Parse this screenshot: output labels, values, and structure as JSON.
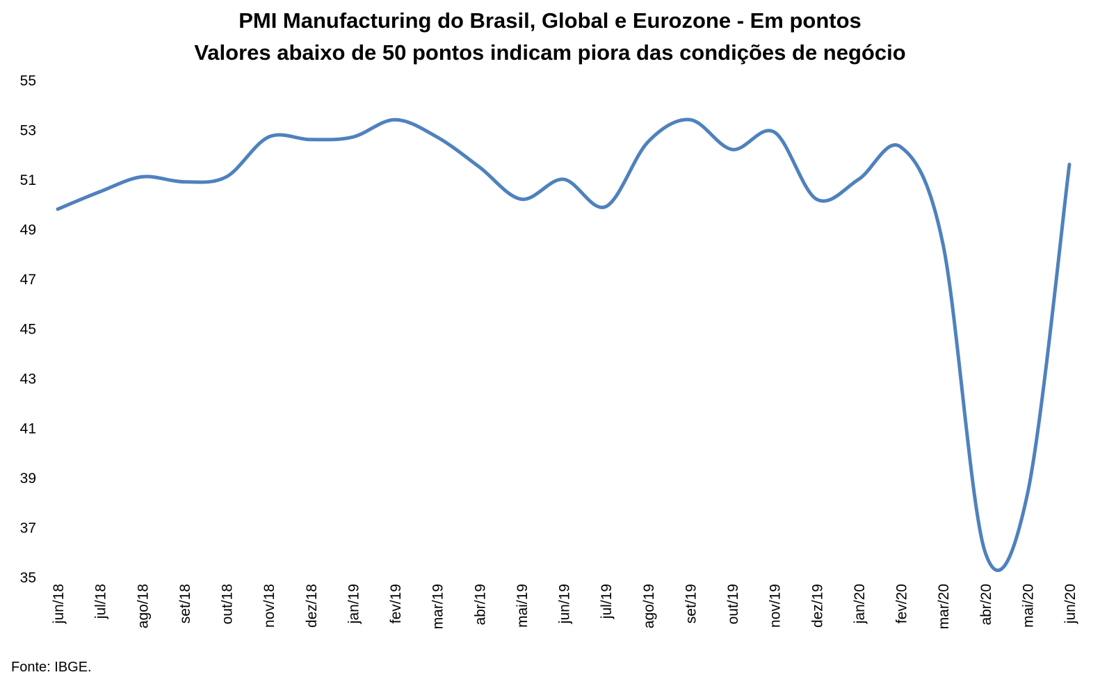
{
  "chart_data": {
    "type": "line",
    "title": "PMI Manufacturing do Brasil, Global e Eurozone - Em pontos",
    "subtitle": "Valores abaixo de 50 pontos indicam piora das condições de negócio",
    "xlabel": "",
    "ylabel": "",
    "ylim": [
      35,
      55
    ],
    "yticks": [
      35,
      37,
      39,
      41,
      43,
      45,
      47,
      49,
      51,
      53,
      55
    ],
    "grid": false,
    "legend": "none",
    "line_color": "#4F81BD",
    "categories": [
      "jun/18",
      "jul/18",
      "ago/18",
      "set/18",
      "out/18",
      "nov/18",
      "dez/18",
      "jan/19",
      "fev/19",
      "mar/19",
      "abr/19",
      "mai/19",
      "jun/19",
      "jul/19",
      "ago/19",
      "set/19",
      "out/19",
      "nov/19",
      "dez/19",
      "jan/20",
      "fev/20",
      "mar/20",
      "abr/20",
      "mai/20",
      "jun/20"
    ],
    "series": [
      {
        "values": [
          49.8,
          50.5,
          51.1,
          50.9,
          51.1,
          52.7,
          52.6,
          52.7,
          53.4,
          52.7,
          51.5,
          50.2,
          51.0,
          49.9,
          52.5,
          53.4,
          52.2,
          52.9,
          50.2,
          51.0,
          52.3,
          48.4,
          36.0,
          38.3,
          51.6
        ]
      }
    ]
  },
  "footer": {
    "source": "Fonte: IBGE."
  }
}
